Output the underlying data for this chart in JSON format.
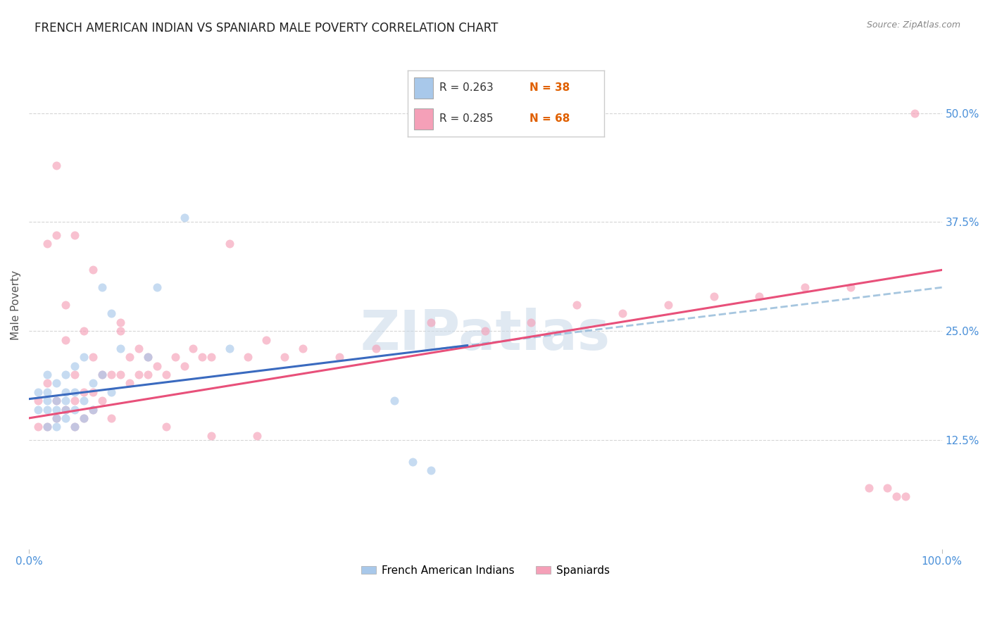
{
  "title": "FRENCH AMERICAN INDIAN VS SPANIARD MALE POVERTY CORRELATION CHART",
  "source": "Source: ZipAtlas.com",
  "ylabel": "Male Poverty",
  "ytick_vals": [
    0.125,
    0.25,
    0.375,
    0.5
  ],
  "ytick_labels": [
    "12.5%",
    "25.0%",
    "37.5%",
    "50.0%"
  ],
  "xlim": [
    0.0,
    1.0
  ],
  "ylim": [
    0.0,
    0.56
  ],
  "legend_labels": [
    "French American Indians",
    "Spaniards"
  ],
  "watermark": "ZIPatlas",
  "background_color": "#ffffff",
  "grid_color": "#cccccc",
  "title_color": "#222222",
  "title_fontsize": 12,
  "axis_tick_color": "#4a90d9",
  "blue_scatter_color": "#a8c8ea",
  "pink_scatter_color": "#f5a0b8",
  "blue_line_color": "#3a6abf",
  "pink_line_color": "#e8507a",
  "blue_dashed_color": "#90b8d8",
  "scatter_size": 75,
  "scatter_alpha": 0.65,
  "french_x": [
    0.01,
    0.01,
    0.02,
    0.02,
    0.02,
    0.02,
    0.02,
    0.03,
    0.03,
    0.03,
    0.03,
    0.03,
    0.04,
    0.04,
    0.04,
    0.04,
    0.04,
    0.05,
    0.05,
    0.05,
    0.05,
    0.06,
    0.06,
    0.06,
    0.07,
    0.07,
    0.08,
    0.08,
    0.09,
    0.09,
    0.1,
    0.13,
    0.14,
    0.17,
    0.22,
    0.4,
    0.42,
    0.44
  ],
  "french_y": [
    0.16,
    0.18,
    0.14,
    0.16,
    0.17,
    0.18,
    0.2,
    0.14,
    0.15,
    0.16,
    0.17,
    0.19,
    0.15,
    0.16,
    0.17,
    0.18,
    0.2,
    0.14,
    0.16,
    0.18,
    0.21,
    0.15,
    0.17,
    0.22,
    0.16,
    0.19,
    0.2,
    0.3,
    0.18,
    0.27,
    0.23,
    0.22,
    0.3,
    0.38,
    0.23,
    0.17,
    0.1,
    0.09
  ],
  "spaniard_x": [
    0.01,
    0.01,
    0.02,
    0.02,
    0.03,
    0.03,
    0.03,
    0.04,
    0.04,
    0.04,
    0.05,
    0.05,
    0.05,
    0.06,
    0.06,
    0.06,
    0.07,
    0.07,
    0.07,
    0.08,
    0.08,
    0.09,
    0.09,
    0.1,
    0.1,
    0.11,
    0.11,
    0.12,
    0.12,
    0.13,
    0.13,
    0.14,
    0.15,
    0.16,
    0.17,
    0.18,
    0.19,
    0.2,
    0.22,
    0.24,
    0.26,
    0.28,
    0.3,
    0.34,
    0.38,
    0.44,
    0.5,
    0.55,
    0.6,
    0.65,
    0.7,
    0.75,
    0.8,
    0.85,
    0.9,
    0.92,
    0.94,
    0.95,
    0.96,
    0.97,
    0.02,
    0.03,
    0.05,
    0.07,
    0.1,
    0.15,
    0.2,
    0.25
  ],
  "spaniard_y": [
    0.14,
    0.17,
    0.14,
    0.19,
    0.15,
    0.17,
    0.44,
    0.16,
    0.24,
    0.28,
    0.14,
    0.17,
    0.2,
    0.15,
    0.18,
    0.25,
    0.16,
    0.18,
    0.22,
    0.17,
    0.2,
    0.15,
    0.2,
    0.2,
    0.25,
    0.19,
    0.22,
    0.2,
    0.23,
    0.2,
    0.22,
    0.21,
    0.2,
    0.22,
    0.21,
    0.23,
    0.22,
    0.22,
    0.35,
    0.22,
    0.24,
    0.22,
    0.23,
    0.22,
    0.23,
    0.26,
    0.25,
    0.26,
    0.28,
    0.27,
    0.28,
    0.29,
    0.29,
    0.3,
    0.3,
    0.07,
    0.07,
    0.06,
    0.06,
    0.5,
    0.35,
    0.36,
    0.36,
    0.32,
    0.26,
    0.14,
    0.13,
    0.13
  ]
}
